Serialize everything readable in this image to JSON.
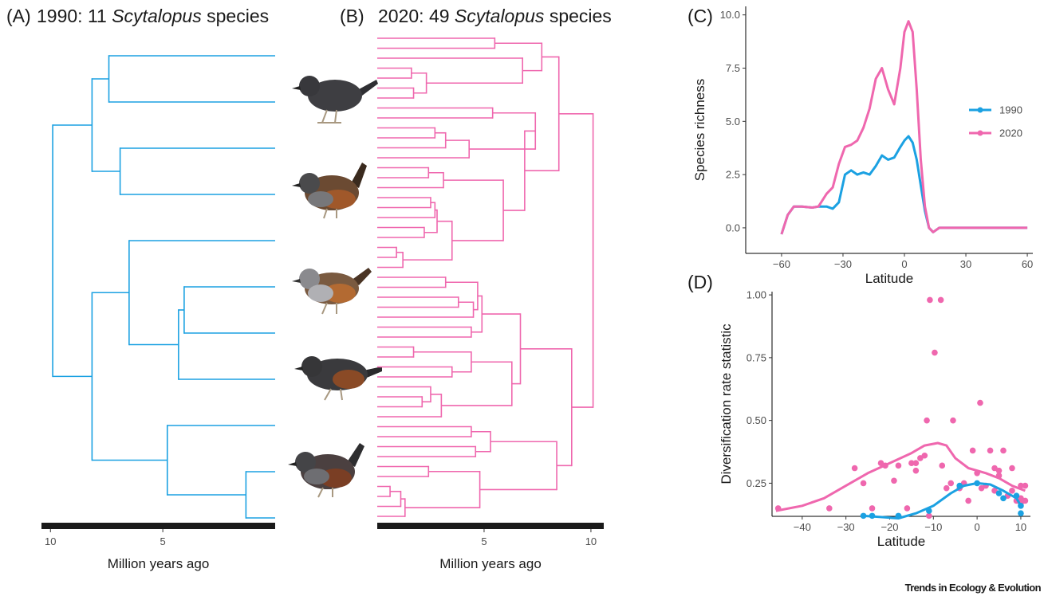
{
  "chart_data": [
    {
      "type": "tree",
      "label": "(A)",
      "title": [
        "1990: 11 ",
        "Scytalopus",
        " species"
      ],
      "color": "#1ba1e2",
      "xlim": [
        10.4,
        0
      ],
      "xticks": [
        10,
        5
      ],
      "xlabel": "Million years ago",
      "tree": [
        9.9,
        [
          8.15,
          [
            7.4,
            0,
            0
          ],
          [
            6.9,
            0,
            0
          ]
        ],
        [
          8.15,
          [
            6.5,
            0,
            [
              4.3,
              [
                4.05,
                0,
                0
              ],
              0
            ]
          ],
          [
            4.8,
            0,
            [
              1.3,
              0,
              0
            ]
          ]
        ]
      ]
    },
    {
      "type": "tree",
      "label": "(B)",
      "title": [
        "2020: 49 ",
        "Scytalopus",
        " species"
      ],
      "color": "#ef67ae",
      "xlim": [
        0,
        10.6
      ],
      "xticks": [
        5,
        10
      ],
      "xlabel": "Million years ago",
      "tree": [
        10.1,
        [
          8.5,
          [
            7.7,
            [
              5.5,
              0,
              0
            ],
            [
              6.8,
              0,
              [
                2.3,
                [
                  1.6,
                  0,
                  0
                ],
                [
                  1.7,
                  0,
                  0
                ]
              ]
            ]
          ],
          [
            6.9,
            [
              7.4,
              [
                5.4,
                0,
                0
              ],
              [
                4.3,
                [
                  3.2,
                  [
                    2.7,
                    0,
                    0
                  ],
                  0
                ],
                0
              ]
            ],
            [
              5.9,
              [
                3.1,
                [
                  2.4,
                  0,
                  0
                ],
                0
              ],
              [
                3.5,
                [
                  2.8,
                  [
                    2.7,
                    [
                      2.5,
                      0,
                      0
                    ],
                    0
                  ],
                  [
                    2.2,
                    0,
                    0
                  ]
                ],
                [
                  1.2,
                  [
                    0.9,
                    0,
                    0
                  ],
                  0
                ]
              ]
            ]
          ]
        ],
        [
          9.1,
          [
            6.7,
            [
              4.9,
              [
                4.7,
                [
                  3.2,
                  0,
                  0
                ],
                [
                  4.5,
                  [
                    3.8,
                    0,
                    0
                  ],
                  0
                ]
              ],
              [
                4.4,
                0,
                0
              ]
            ],
            [
              6.3,
              [
                4.4,
                [
                  1.7,
                  0,
                  0
                ],
                [
                  3.5,
                  0,
                  0
                ]
              ],
              [
                3.0,
                [
                  2.5,
                  0,
                  [
                    2.1,
                    0,
                    0
                  ]
                ],
                0
              ]
            ]
          ],
          [
            8.4,
            [
              5.3,
              [
                4.4,
                0,
                0
              ],
              [
                4.6,
                0,
                0
              ]
            ],
            [
              4.8,
              [
                2.4,
                0,
                0
              ],
              [
                1.3,
                [
                  1.1,
                  [
                    0.6,
                    0,
                    0
                  ],
                  0
                ],
                0
              ]
            ]
          ]
        ]
      ]
    },
    {
      "type": "line",
      "label": "(C)",
      "xlabel": "Latitude",
      "ylabel": "Species richness",
      "legend": "right",
      "xlim": [
        -77.5,
        62.7
      ],
      "ylim": [
        -1.2,
        10.4
      ],
      "xticks": [
        {
          "value": -60,
          "label": "−60"
        },
        {
          "value": -30,
          "label": "−30"
        },
        0,
        30,
        60
      ],
      "yticks": [
        {
          "value": 0,
          "label": "0.0"
        },
        {
          "value": 2.5,
          "label": "2.5"
        },
        {
          "value": 5,
          "label": "5.0"
        },
        {
          "value": 7.5,
          "label": "7.5"
        },
        {
          "value": 10,
          "label": "10.0"
        }
      ],
      "x": [
        -60,
        -57,
        -54,
        -50,
        -45,
        -42,
        -38,
        -35,
        -32,
        -29,
        -26,
        -23,
        -20,
        -17,
        -14,
        -11,
        -8,
        -5,
        -2,
        0,
        2,
        4,
        6,
        8,
        10,
        12,
        14,
        17,
        20,
        30,
        40,
        50,
        60
      ],
      "series": [
        {
          "name": "1990",
          "color": "#1ba1e2",
          "values": [
            -0.3,
            0.6,
            1.0,
            1.0,
            0.95,
            1.0,
            1.0,
            0.9,
            1.2,
            2.5,
            2.7,
            2.5,
            2.6,
            2.5,
            2.9,
            3.4,
            3.2,
            3.3,
            3.8,
            4.1,
            4.3,
            4.0,
            3.2,
            2.0,
            0.8,
            0,
            -0.2,
            0,
            0,
            0,
            0,
            0,
            0
          ]
        },
        {
          "name": "2020",
          "color": "#ef67ae",
          "values": [
            -0.3,
            0.6,
            1.0,
            1.0,
            0.95,
            1.0,
            1.6,
            1.9,
            3.0,
            3.8,
            3.9,
            4.1,
            4.7,
            5.6,
            7.0,
            7.5,
            6.5,
            5.8,
            7.5,
            9.2,
            9.7,
            9.2,
            6.5,
            3.2,
            1.0,
            0,
            -0.2,
            0,
            0,
            0,
            0,
            0,
            0
          ]
        }
      ]
    },
    {
      "type": "scatter",
      "label": "(D)",
      "xlabel": "Latitude",
      "ylabel": "Diversification rate statistic",
      "xlim": [
        -46.9,
        12.2
      ],
      "ylim": [
        0.118,
        1.013
      ],
      "xticks": [
        {
          "value": -40,
          "label": "−40"
        },
        {
          "value": -30,
          "label": "−30"
        },
        {
          "value": -20,
          "label": "−20"
        },
        {
          "value": -10,
          "label": "−10"
        },
        0,
        10
      ],
      "yticks": [
        {
          "value": 0.25,
          "label": "0.25"
        },
        {
          "value": 0.5,
          "label": "0.50"
        },
        {
          "value": 0.75,
          "label": "0.75"
        },
        {
          "value": 1,
          "label": "1.00"
        }
      ],
      "series": [
        {
          "color": "#ef67ae",
          "x": [
            -45.5,
            -33.8,
            -28,
            -26,
            -24,
            -22,
            -21,
            -19,
            -18,
            -16,
            -15,
            -14,
            -14,
            -13,
            -12,
            -11,
            -10.8,
            -8.3,
            -9.7,
            -11.5,
            -8,
            -7,
            -6,
            -5.5,
            -4,
            -3,
            -2,
            -1,
            0,
            0.7,
            1,
            2,
            3,
            4,
            4,
            5,
            5,
            6,
            7,
            8,
            8,
            9,
            10,
            10,
            10,
            11,
            11
          ],
          "values": [
            0.15,
            0.15,
            0.31,
            0.25,
            0.15,
            0.33,
            0.32,
            0.26,
            0.32,
            0.15,
            0.33,
            0.3,
            0.33,
            0.35,
            0.36,
            0.12,
            0.98,
            0.98,
            0.77,
            0.5,
            0.32,
            0.23,
            0.25,
            0.5,
            0.23,
            0.25,
            0.18,
            0.38,
            0.29,
            0.57,
            0.23,
            0.24,
            0.38,
            0.22,
            0.31,
            0.3,
            0.28,
            0.38,
            0.2,
            0.31,
            0.22,
            0.18,
            0.24,
            0.19,
            0.17,
            0.24,
            0.18
          ]
        },
        {
          "color": "#1ba1e2",
          "x": [
            -26,
            -24,
            -18,
            -11,
            -4,
            0,
            5,
            6,
            9,
            10,
            10
          ],
          "values": [
            0.12,
            0.12,
            0.12,
            0.14,
            0.24,
            0.25,
            0.21,
            0.19,
            0.2,
            0.16,
            0.13
          ]
        }
      ],
      "lines": [
        {
          "color": "#ef67ae",
          "x": [
            -46,
            -40,
            -35,
            -30,
            -25,
            -20,
            -15,
            -12,
            -9,
            -7,
            -5,
            -2,
            2,
            5,
            8,
            11
          ],
          "values": [
            0.14,
            0.16,
            0.19,
            0.24,
            0.29,
            0.33,
            0.37,
            0.4,
            0.41,
            0.4,
            0.35,
            0.31,
            0.29,
            0.27,
            0.24,
            0.22
          ]
        },
        {
          "color": "#1ba1e2",
          "x": [
            -26,
            -22,
            -18,
            -14,
            -10,
            -6,
            -3,
            0,
            3,
            6,
            9,
            10
          ],
          "values": [
            0.12,
            0.115,
            0.11,
            0.13,
            0.16,
            0.21,
            0.24,
            0.25,
            0.245,
            0.22,
            0.19,
            0.16
          ]
        }
      ]
    }
  ],
  "source": "Trends in Ecology & Evolution"
}
